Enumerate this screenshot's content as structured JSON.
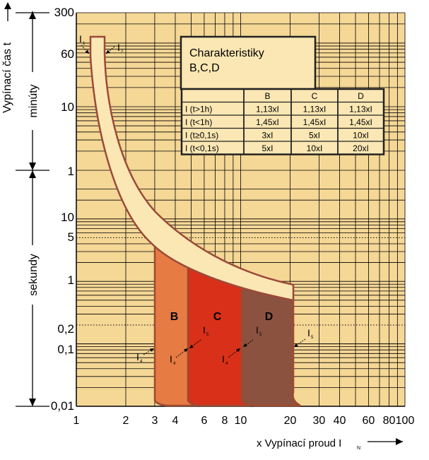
{
  "chart_data": {
    "type": "area",
    "title": "Charakteristiky",
    "subtitle": "B,C,D",
    "xlabel": "x Vypínací proud I",
    "xlabel_sub": "N",
    "ylabel": "Vypínací čas t",
    "y_sections": [
      {
        "label": "minúty",
        "ticks": [
          {
            "value": 300,
            "label": "300"
          },
          {
            "value": 60,
            "label": "60"
          },
          {
            "value": 10,
            "label": "10"
          },
          {
            "value": 1,
            "label": "1"
          }
        ]
      },
      {
        "label": "sekundy",
        "ticks": [
          {
            "value": 10,
            "label": "10"
          },
          {
            "value": 5,
            "label": "5"
          },
          {
            "value": 1,
            "label": "1"
          },
          {
            "value": 0.2,
            "label": "0,2"
          },
          {
            "value": 0.1,
            "label": "0,1"
          },
          {
            "value": 0.01,
            "label": "0,01"
          }
        ]
      }
    ],
    "x_scale": "log",
    "xlim": [
      1,
      100
    ],
    "x_ticks": [
      {
        "value": 1,
        "label": "1"
      },
      {
        "value": 2,
        "label": "2"
      },
      {
        "value": 3,
        "label": "3"
      },
      {
        "value": 4,
        "label": "4"
      },
      {
        "value": 6,
        "label": "6"
      },
      {
        "value": 8,
        "label": "8"
      },
      {
        "value": 10,
        "label": "10"
      },
      {
        "value": 20,
        "label": "20"
      },
      {
        "value": 30,
        "label": "30"
      },
      {
        "value": 40,
        "label": "40"
      },
      {
        "value": 60,
        "label": "60"
      },
      {
        "value": 80,
        "label": "80"
      },
      {
        "value": 100,
        "label": "100"
      }
    ],
    "regions": [
      {
        "name": "B",
        "color": "#e67b44",
        "x_from": 3,
        "x_to": 5
      },
      {
        "name": "C",
        "color": "#d9301a",
        "x_from": 5,
        "x_to": 10
      },
      {
        "name": "D",
        "color": "#8c5240",
        "x_from": 10,
        "x_to": 20
      }
    ],
    "band": {
      "color": "#fbe7b3",
      "edge": "#9b4a3a",
      "x_from": 1.13,
      "x_to": 1.45
    },
    "markers": [
      {
        "label": "I",
        "sub": "1"
      },
      {
        "label": "I",
        "sub": "2"
      },
      {
        "label": "I",
        "sub": "4"
      },
      {
        "label": "I",
        "sub": "5"
      },
      {
        "label": "I",
        "sub": "4"
      },
      {
        "label": "I",
        "sub": "5"
      },
      {
        "label": "I",
        "sub": "4"
      },
      {
        "label": "I",
        "sub": "5"
      }
    ],
    "table": {
      "columns": [
        "",
        "B",
        "C",
        "D"
      ],
      "rows": [
        [
          "I  (t>1h)",
          "1,13xI",
          "1,13xI",
          "1,13xI"
        ],
        [
          "I  (t<1h)",
          "1,45xI",
          "1,45xI",
          "1,45xI"
        ],
        [
          "I  (t≥0,1s)",
          "3xI",
          "5xI",
          "10xI"
        ],
        [
          "I  (t<0,1s)",
          "5xI",
          "10xI",
          "20xI"
        ]
      ]
    },
    "colors": {
      "background": "#f5d796",
      "grid": "#000000"
    }
  }
}
